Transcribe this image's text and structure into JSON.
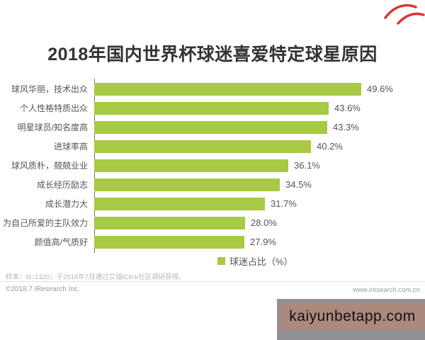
{
  "title": "2018年国内世界杯球迷喜爱特定球星原因",
  "chart_data": {
    "type": "bar",
    "orientation": "horizontal",
    "title": "2018年国内世界杯球迷喜爱特定球星原因",
    "categories": [
      "球风华丽，技术出众",
      "个人性格特质出众",
      "明星球员/知名度高",
      "进球率高",
      "球风质朴，兢兢业业",
      "成长经历励志",
      "成长潜力大",
      "为自己所爱的主队效力",
      "颜值高/气质好"
    ],
    "values": [
      49.6,
      43.6,
      43.3,
      40.2,
      36.1,
      34.5,
      31.7,
      28.0,
      27.9
    ],
    "value_labels": [
      "49.6%",
      "43.6%",
      "43.3%",
      "40.2%",
      "36.1%",
      "34.5%",
      "31.7%",
      "28.0%",
      "27.9%"
    ],
    "unit": "%",
    "xlim": [
      0,
      55
    ],
    "grid": false,
    "bar_color": "#a8c944",
    "legend": {
      "label": "球迷占比（%）",
      "position": "bottom",
      "swatch_color": "#a8c944"
    }
  },
  "footer": {
    "sample_note": "样本：N=1320；于2018年7月通过艾瑞iClick社区调研获得。",
    "copyright": "©2018.7 iResearch Inc.",
    "website": "www.iresearch.com.cn"
  },
  "watermark": {
    "text": "kaiyunbetapp.com",
    "box_color": "#ab897c",
    "strip_color": "#8e9093"
  },
  "annotation": {
    "color": "#e03131"
  }
}
